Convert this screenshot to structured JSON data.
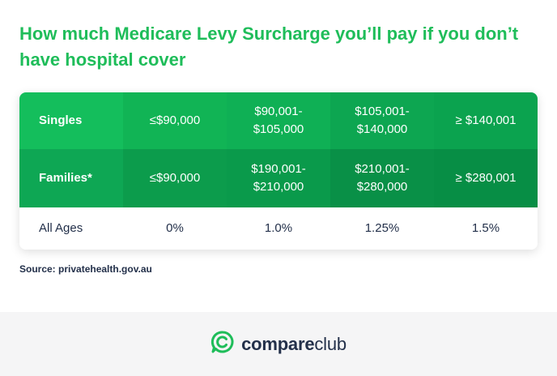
{
  "title": "How much Medicare Levy Surcharge you’ll pay if you don’t have hospital cover",
  "table": {
    "rows": [
      {
        "label": "Singles",
        "cells": [
          "≤$90,000",
          "$90,001-\n$105,000",
          "$105,001-\n$140,000",
          "≥ $140,001"
        ]
      },
      {
        "label": "Families*",
        "cells": [
          "≤$90,000",
          "$190,001-\n$210,000",
          "$210,001-\n$280,000",
          "≥ $280,001"
        ]
      },
      {
        "label": "All Ages",
        "cells": [
          "0%",
          "1.0%",
          "1.25%",
          "1.5%"
        ]
      }
    ]
  },
  "source": "Source: privatehealth.gov.au",
  "brand": {
    "name_bold": "compare",
    "name_regular": "club",
    "logo_icon": "compareclub-speech-bubble-icon",
    "colors": {
      "primary": "#1fbd5a",
      "dark": "#23304a"
    }
  }
}
